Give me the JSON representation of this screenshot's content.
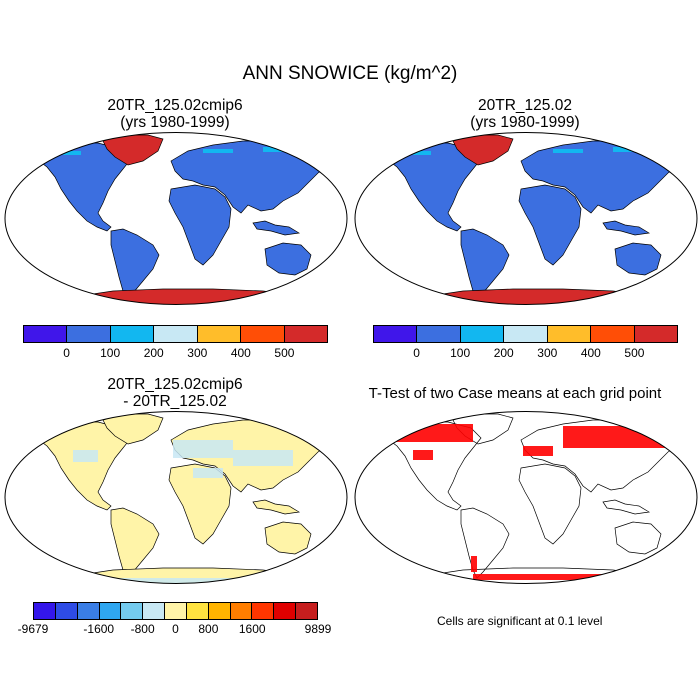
{
  "title": "ANN SNOWICE (kg/m^2)",
  "panels": {
    "top_left": {
      "line1": "20TR_125.02cmip6",
      "line2": "(yrs 1980-1999)"
    },
    "top_right": {
      "line1": "20TR_125.02",
      "line2": "(yrs 1980-1999)"
    },
    "bottom_left": {
      "line1": "20TR_125.02cmip6",
      "line2": "- 20TR_125.02"
    },
    "bottom_right": {
      "line1": "T-Test of two Case means at each grid point"
    }
  },
  "colorbar_main": {
    "colors": [
      "#4016ea",
      "#3c6fe0",
      "#12b7f0",
      "#c8e8f4",
      "#ffbd2a",
      "#ff4e06",
      "#d42a2a"
    ],
    "ticks": [
      "0",
      "100",
      "200",
      "300",
      "400",
      "500"
    ]
  },
  "colorbar_diff": {
    "colors": [
      "#3416ea",
      "#2e4ce6",
      "#3a7ee6",
      "#2fa6f0",
      "#74cbef",
      "#c8e8f4",
      "#fff4a8",
      "#ffe340",
      "#ffb400",
      "#ff7e00",
      "#ff3600",
      "#e00000",
      "#c61e1e"
    ],
    "ticks": [
      "-9679",
      "-1600",
      "-800",
      "0",
      "800",
      "1600",
      "9899"
    ]
  },
  "significance_note": "Cells are significant at 0.1 level",
  "colors": {
    "land": "#3c6fe0",
    "ice": "#d42a2a",
    "snow_light": "#12b7f0",
    "diff_land": "#fff4a8",
    "diff_neg": "#c8e8f4",
    "sig": "#ff0000"
  }
}
